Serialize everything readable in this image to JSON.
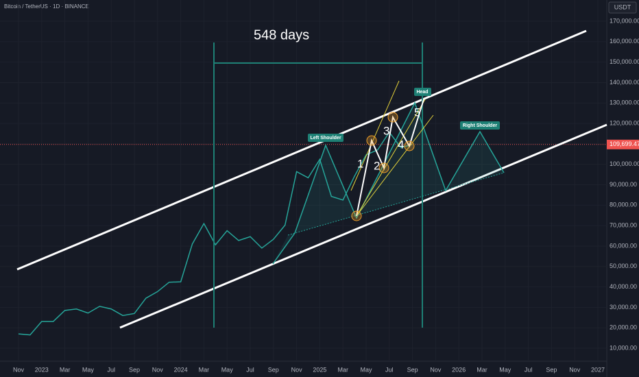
{
  "chart_data": {
    "type": "line",
    "title": "Bitcoin / TetherUS · 1D · BINANCE",
    "currency_label": "USDT",
    "categories": [
      "Nov",
      null,
      "2023",
      null,
      "Mar",
      null,
      "May",
      null,
      "Jul",
      null,
      "Sep",
      null,
      "Nov",
      null,
      "2024",
      null,
      "Mar",
      null,
      "May",
      null,
      "Jul",
      null,
      "Sep",
      null,
      "Nov",
      null,
      "2025",
      null,
      "Mar",
      null,
      "May",
      null,
      "Jul",
      null,
      "Sep",
      null,
      "Nov",
      null,
      "2026",
      null,
      "Mar",
      null,
      "May",
      null,
      "Jul",
      null,
      "Sep",
      null,
      "Nov",
      null,
      "2027"
    ],
    "values": [
      17000,
      16500,
      23100,
      23100,
      28500,
      29200,
      27200,
      30500,
      29200,
      26000,
      27000,
      34500,
      37700,
      42300,
      42500,
      61000,
      71000,
      60600,
      67500,
      62700,
      64600,
      59000,
      63300,
      70200,
      96400,
      93400,
      102400,
      84300,
      82500,
      94200,
      104600,
      107100,
      115700,
      108200,
      109700,
      null,
      null,
      null,
      null,
      null,
      null,
      null,
      null,
      null,
      null,
      null,
      null,
      null,
      null,
      null,
      null
    ],
    "color": "#26a69a",
    "ylim": [
      4300,
      180400
    ],
    "yticks": [
      {
        "value": 10000,
        "label": "10,000.00"
      },
      {
        "value": 20000,
        "label": "20,000.00"
      },
      {
        "value": 30000,
        "label": "30,000.00"
      },
      {
        "value": 40000,
        "label": "40,000.00"
      },
      {
        "value": 50000,
        "label": "50,000.00"
      },
      {
        "value": 60000,
        "label": "60,000.00"
      },
      {
        "value": 70000,
        "label": "70,000.00"
      },
      {
        "value": 80000,
        "label": "80,000.00"
      },
      {
        "value": 90000,
        "label": "90,000.00"
      },
      {
        "value": 100000,
        "label": "100,000.00"
      },
      {
        "value": 110000,
        "label": "110,000.00"
      },
      {
        "value": 120000,
        "label": "120,000.00"
      },
      {
        "value": 130000,
        "label": "130,000.00"
      },
      {
        "value": 140000,
        "label": "140,000.00"
      },
      {
        "value": 150000,
        "label": "150,000.00"
      },
      {
        "value": 160000,
        "label": "160,000.00"
      },
      {
        "value": 170000,
        "label": "170,000.00"
      }
    ],
    "last_price": {
      "value": 109699.47,
      "label": "109,699.47"
    },
    "annotations": {
      "duration": "548 days",
      "left_shoulder": "Left Shoulder",
      "head": "Head",
      "right_shoulder": "Right Shoulder",
      "waves": [
        "1",
        "2",
        "3",
        "4",
        "5"
      ]
    }
  }
}
